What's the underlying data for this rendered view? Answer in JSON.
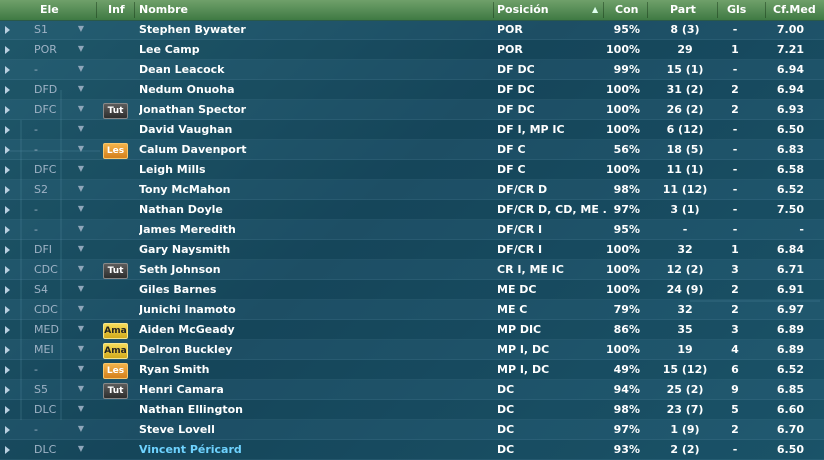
{
  "columns": {
    "ele": "Ele",
    "inf": "Inf",
    "nombre": "Nombre",
    "posicion": "Posición",
    "con": "Con",
    "part": "Part",
    "gls": "Gls",
    "cfmed": "Cf.Med",
    "sort_indicator": "▲"
  },
  "rows": [
    {
      "pos": "S1",
      "badge": "",
      "name": "Stephen Bywater",
      "posicion": "POR",
      "con": "95%",
      "part": "8 (3)",
      "gls": "-",
      "cfmed": "7.00"
    },
    {
      "pos": "POR",
      "badge": "",
      "name": "Lee Camp",
      "posicion": "POR",
      "con": "100%",
      "part": "29",
      "gls": "1",
      "cfmed": "7.21"
    },
    {
      "pos": "-",
      "badge": "",
      "name": "Dean Leacock",
      "posicion": "DF DC",
      "con": "99%",
      "part": "15 (1)",
      "gls": "-",
      "cfmed": "6.94"
    },
    {
      "pos": "DFD",
      "badge": "",
      "name": "Nedum Onuoha",
      "posicion": "DF DC",
      "con": "100%",
      "part": "31 (2)",
      "gls": "2",
      "cfmed": "6.94"
    },
    {
      "pos": "DFC",
      "badge": "Tut",
      "name": "Jonathan Spector",
      "posicion": "DF DC",
      "con": "100%",
      "part": "26 (2)",
      "gls": "2",
      "cfmed": "6.93"
    },
    {
      "pos": "-",
      "badge": "",
      "name": "David Vaughan",
      "posicion": "DF I, MP IC",
      "con": "100%",
      "part": "6 (12)",
      "gls": "-",
      "cfmed": "6.50"
    },
    {
      "pos": "-",
      "badge": "Les",
      "name": "Calum Davenport",
      "posicion": "DF C",
      "con": "56%",
      "part": "18 (5)",
      "gls": "-",
      "cfmed": "6.83"
    },
    {
      "pos": "DFC",
      "badge": "",
      "name": "Leigh Mills",
      "posicion": "DF C",
      "con": "100%",
      "part": "11 (1)",
      "gls": "-",
      "cfmed": "6.58"
    },
    {
      "pos": "S2",
      "badge": "",
      "name": "Tony McMahon",
      "posicion": "DF/CR D",
      "con": "98%",
      "part": "11 (12)",
      "gls": "-",
      "cfmed": "6.52"
    },
    {
      "pos": "-",
      "badge": "",
      "name": "Nathan Doyle",
      "posicion": "DF/CR D, CD, ME ..",
      "con": "97%",
      "part": "3 (1)",
      "gls": "-",
      "cfmed": "7.50"
    },
    {
      "pos": "-",
      "badge": "",
      "name": "James Meredith",
      "posicion": "DF/CR I",
      "con": "95%",
      "part": "-",
      "gls": "-",
      "cfmed": "-"
    },
    {
      "pos": "DFI",
      "badge": "",
      "name": "Gary Naysmith",
      "posicion": "DF/CR I",
      "con": "100%",
      "part": "32",
      "gls": "1",
      "cfmed": "6.84"
    },
    {
      "pos": "CDC",
      "badge": "Tut",
      "name": "Seth Johnson",
      "posicion": "CR I, ME IC",
      "con": "100%",
      "part": "12 (2)",
      "gls": "3",
      "cfmed": "6.71"
    },
    {
      "pos": "S4",
      "badge": "",
      "name": "Giles Barnes",
      "posicion": "ME DC",
      "con": "100%",
      "part": "24 (9)",
      "gls": "2",
      "cfmed": "6.91"
    },
    {
      "pos": "CDC",
      "badge": "",
      "name": "Junichi Inamoto",
      "posicion": "ME C",
      "con": "79%",
      "part": "32",
      "gls": "2",
      "cfmed": "6.97"
    },
    {
      "pos": "MED",
      "badge": "Ama",
      "name": "Aiden McGeady",
      "posicion": "MP DIC",
      "con": "86%",
      "part": "35",
      "gls": "3",
      "cfmed": "6.89"
    },
    {
      "pos": "MEI",
      "badge": "Ama",
      "name": "Delron Buckley",
      "posicion": "MP I, DC",
      "con": "100%",
      "part": "19",
      "gls": "4",
      "cfmed": "6.89"
    },
    {
      "pos": "-",
      "badge": "Les",
      "name": "Ryan Smith",
      "posicion": "MP I, DC",
      "con": "49%",
      "part": "15 (12)",
      "gls": "6",
      "cfmed": "6.52"
    },
    {
      "pos": "S5",
      "badge": "Tut",
      "name": "Henri Camara",
      "posicion": "DC",
      "con": "94%",
      "part": "25 (2)",
      "gls": "9",
      "cfmed": "6.85"
    },
    {
      "pos": "DLC",
      "badge": "",
      "name": "Nathan Ellington",
      "posicion": "DC",
      "con": "98%",
      "part": "23 (7)",
      "gls": "5",
      "cfmed": "6.60"
    },
    {
      "pos": "-",
      "badge": "",
      "name": "Steve Lovell",
      "posicion": "DC",
      "con": "97%",
      "part": "1 (9)",
      "gls": "2",
      "cfmed": "6.70"
    },
    {
      "pos": "DLC",
      "badge": "",
      "name": "Vincent Péricard",
      "posicion": "DC",
      "con": "93%",
      "part": "2 (2)",
      "gls": "-",
      "cfmed": "6.50",
      "highlight": true
    }
  ]
}
